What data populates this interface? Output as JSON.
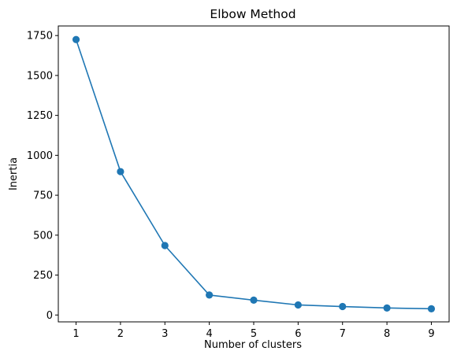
{
  "chart_data": {
    "type": "line",
    "title": "Elbow Method",
    "xlabel": "Number of clusters",
    "ylabel": "Inertia",
    "x": [
      1,
      2,
      3,
      4,
      5,
      6,
      7,
      8,
      9
    ],
    "series": [
      {
        "values": [
          1725,
          898,
          435,
          125,
          93,
          63,
          53,
          44,
          39
        ],
        "color": "#1f77b4",
        "marker": "circle"
      }
    ],
    "xticks": [
      "1",
      "2",
      "3",
      "4",
      "5",
      "6",
      "7",
      "8",
      "9"
    ],
    "yticks": [
      "0",
      "250",
      "500",
      "750",
      "1000",
      "1250",
      "1500",
      "1750"
    ],
    "xlim": [
      0.6,
      9.4
    ],
    "ylim": [
      -43,
      1810
    ],
    "grid": false,
    "legend": "none"
  }
}
